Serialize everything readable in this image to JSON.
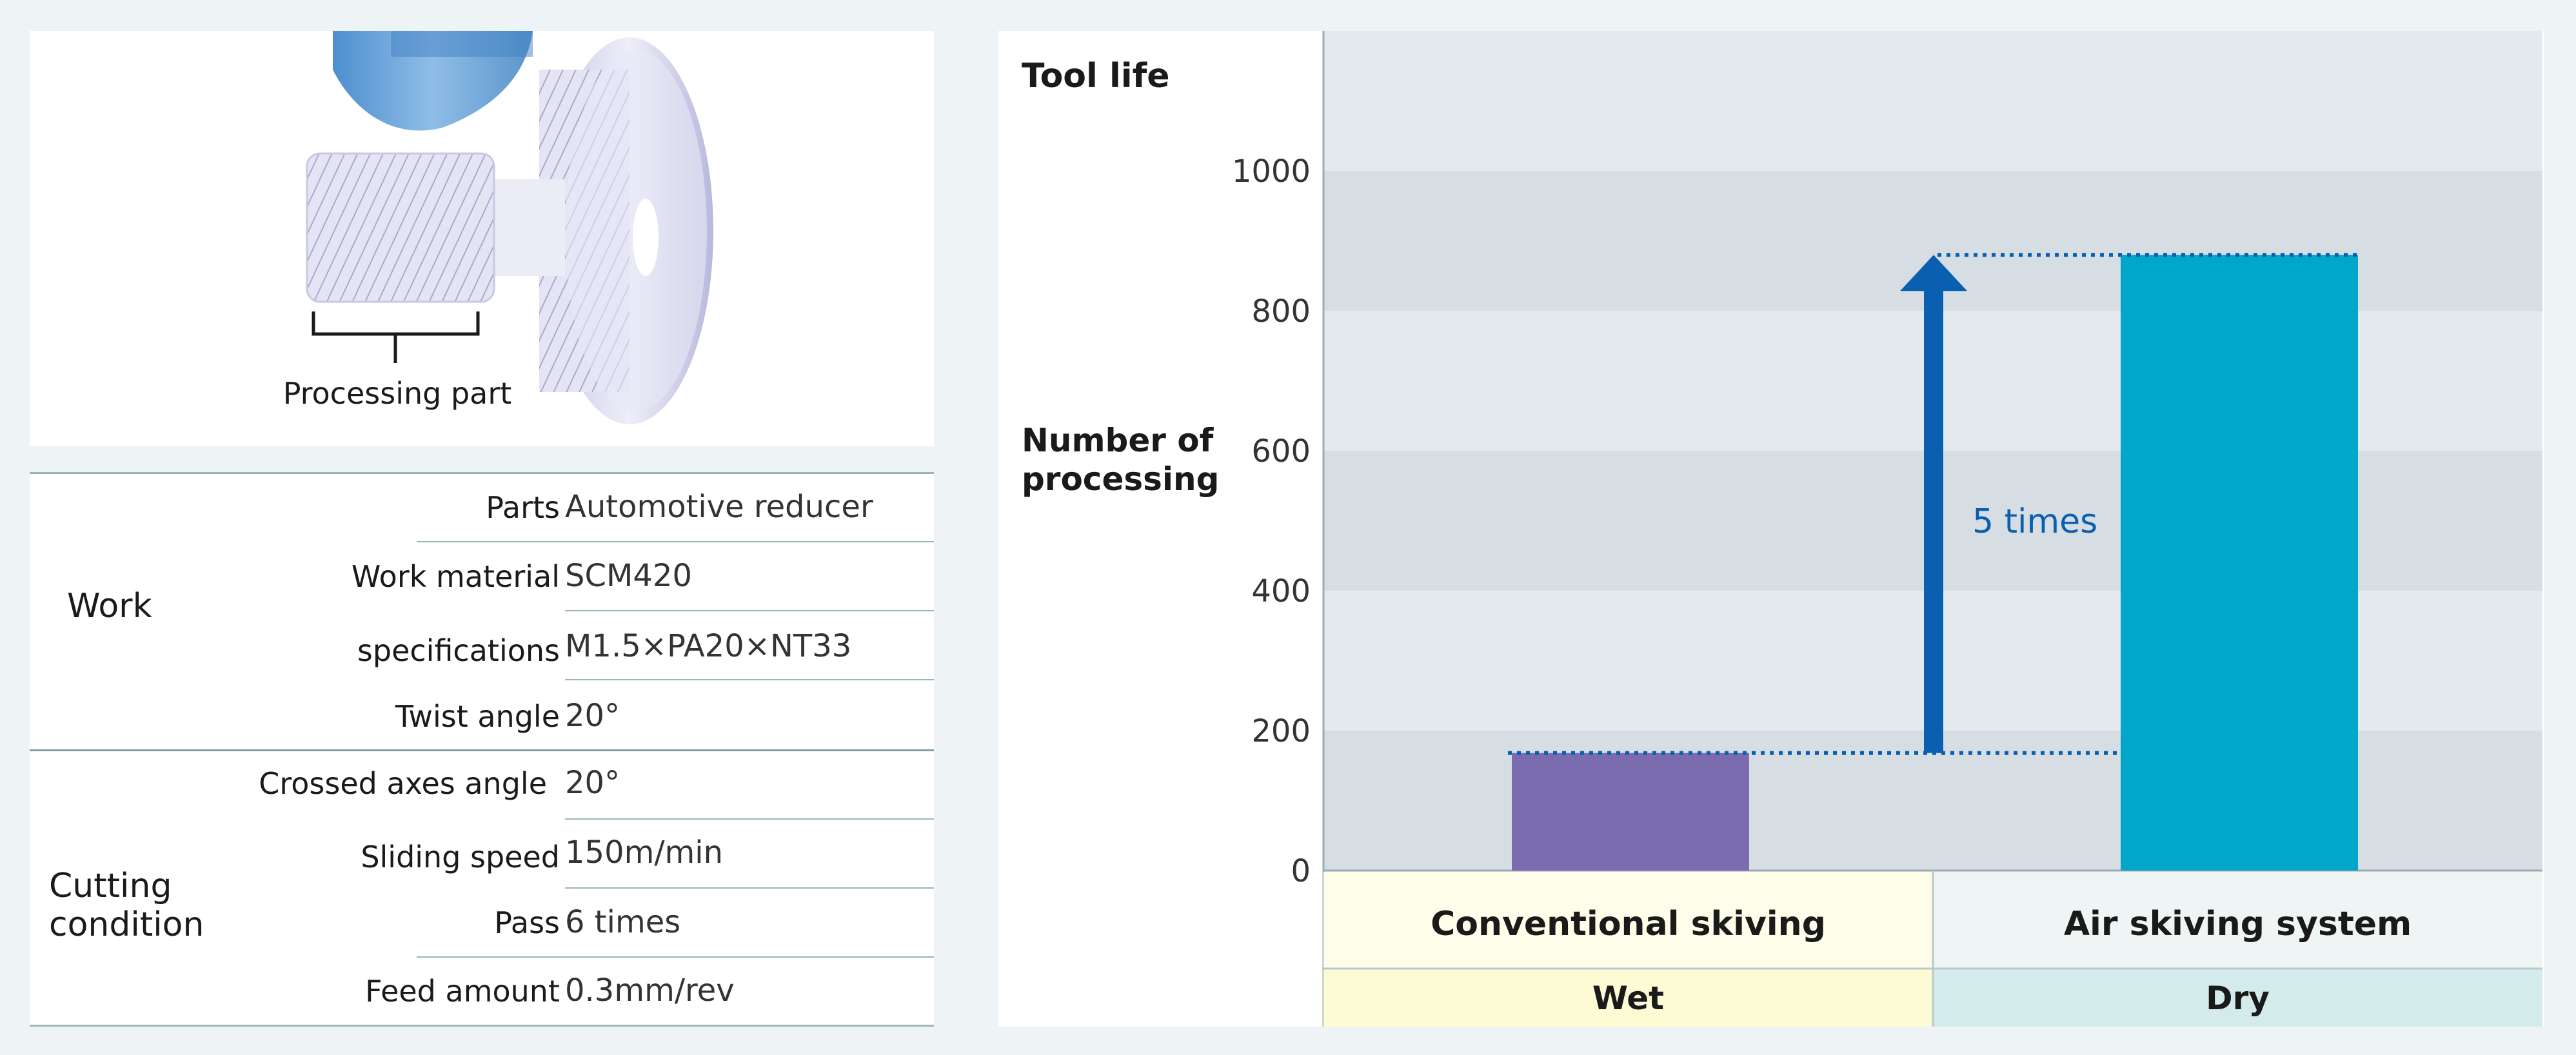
{
  "figure": {
    "processing_part_label": "Processing part"
  },
  "spec_table": {
    "groups": [
      {
        "label": "Work",
        "rows": [
          {
            "label": "Parts",
            "value": "Automotive reducer"
          },
          {
            "label": "Work material",
            "value": "SCM420"
          },
          {
            "label": "specifications",
            "value": "M1.5×PA20×NT33"
          },
          {
            "label": "Twist angle",
            "value": "20°"
          }
        ]
      },
      {
        "label": "Cutting condition",
        "label_lines": [
          "Cutting",
          "condition"
        ],
        "rows": [
          {
            "label": "Crossed axes angle",
            "value": "20°"
          },
          {
            "label": "Sliding speed",
            "value": "150m/min"
          },
          {
            "label": "Pass",
            "value": "6 times"
          },
          {
            "label": "Feed amount",
            "value": "0.3mm/rev"
          }
        ]
      }
    ]
  },
  "chart_data": {
    "type": "bar",
    "title": "Tool life",
    "ylabel": "Number of processing",
    "ylabel_lines": [
      "Number of",
      "processing"
    ],
    "ylim": [
      0,
      1200
    ],
    "yticks": [
      0,
      200,
      400,
      600,
      800,
      1000
    ],
    "categories": [
      "Conventional skiving",
      "Air skiving system"
    ],
    "sub_categories": [
      "Wet",
      "Dry"
    ],
    "values": [
      168,
      880
    ],
    "bar_colors": [
      "#7b6baf",
      "#00a7cb"
    ],
    "annotation": "5 times",
    "colors": {
      "arrow": "#0a5fb0",
      "band_light": "#e3e9ed",
      "band_dark": "#d6dde3",
      "header_left": "#fdfde9",
      "header_right": "#eef5f4",
      "sub_left": "#fdfbd4",
      "sub_right": "#d3ebea"
    }
  }
}
